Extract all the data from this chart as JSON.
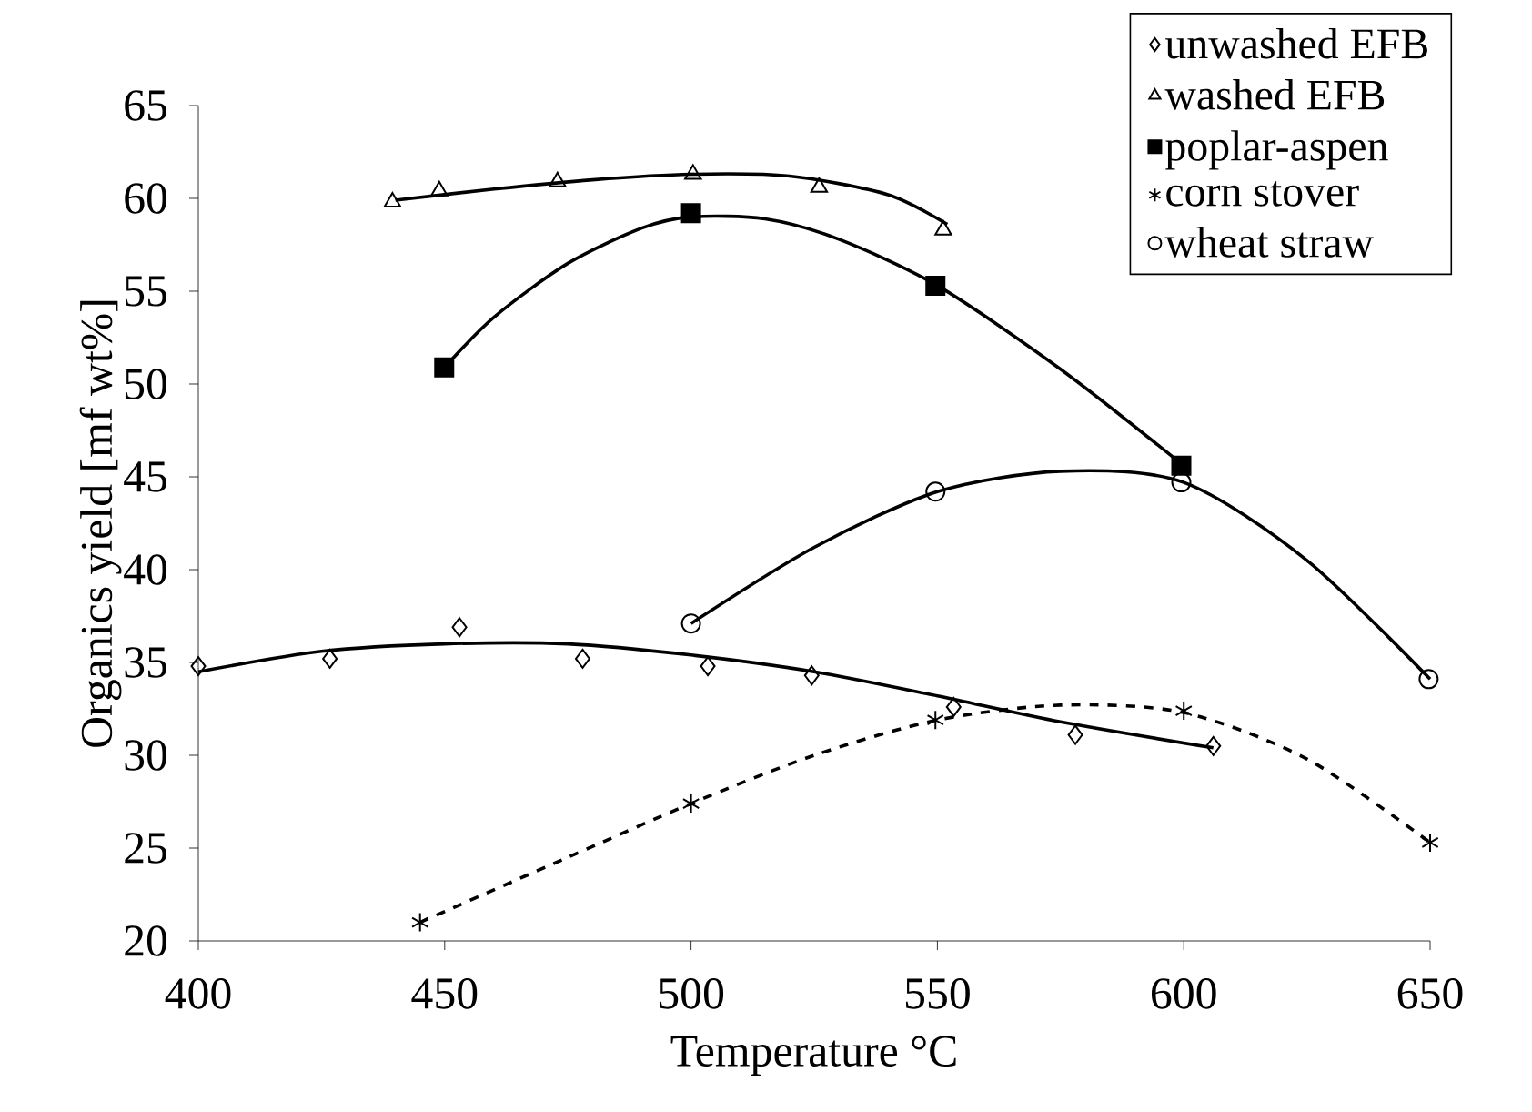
{
  "chart_data": {
    "type": "scatter",
    "xlabel": "Temperature °C",
    "ylabel": "Organics yield [mf wt%]",
    "xlim": [
      400,
      650
    ],
    "xticks": [
      400,
      450,
      500,
      550,
      600,
      650
    ],
    "ylim": [
      20,
      65
    ],
    "yticks": [
      20,
      25,
      30,
      35,
      40,
      45,
      50,
      55,
      60,
      65
    ],
    "grid": false,
    "legend": "top right",
    "series": [
      {
        "name": "unwashed EFB",
        "marker": "diamond",
        "color": "#000000",
        "x": [
          400,
          426.7,
          453,
          478,
          503.4,
          524.5,
          553.3,
          578,
          606
        ],
        "values": [
          34.8,
          35.2,
          36.9,
          35.2,
          34.8,
          34.3,
          32.6,
          31.1,
          30.5
        ]
      },
      {
        "name": "washed EFB",
        "marker": "triangle",
        "color": "#000000",
        "x": [
          439.4,
          448.9,
          472.9,
          500.4,
          526,
          551.2
        ],
        "values": [
          59.8,
          60.4,
          60.9,
          61.3,
          60.6,
          58.3
        ]
      },
      {
        "name": "poplar-aspen",
        "marker": "square",
        "color": "#000000",
        "x": [
          449.9,
          500,
          549.6,
          599.5
        ],
        "values": [
          50.9,
          59.2,
          55.3,
          45.6
        ]
      },
      {
        "name": "corn stover",
        "marker": "cross",
        "color": "#000000",
        "x": [
          445,
          500,
          549.6,
          600,
          650
        ],
        "values": [
          21.0,
          27.4,
          31.9,
          32.4,
          25.3
        ]
      },
      {
        "name": "wheat straw",
        "marker": "circle",
        "color": "#000000",
        "x": [
          500,
          549.6,
          599.5,
          649.7
        ],
        "values": [
          37.1,
          44.2,
          44.7,
          34.1
        ]
      },
      {
        "type": "line",
        "marker": "none",
        "line_style": "solid",
        "color": "#000000",
        "x": [
          400,
          425,
          450,
          475,
          500,
          525,
          550,
          575,
          606
        ],
        "values": [
          34.5,
          35.6,
          36.0,
          36.0,
          35.4,
          34.5,
          33.2,
          31.8,
          30.4
        ]
      },
      {
        "type": "line",
        "marker": "none",
        "line_style": "solid",
        "color": "#000000",
        "x": [
          440,
          460,
          480,
          500,
          520,
          540,
          552
        ],
        "values": [
          59.9,
          60.5,
          61.0,
          61.3,
          61.2,
          60.2,
          58.6
        ]
      },
      {
        "type": "line",
        "marker": "none",
        "line_style": "solid",
        "color": "#000000",
        "x": [
          450,
          460,
          475,
          490,
          500,
          515,
          530,
          550,
          575,
          600
        ],
        "values": [
          50.9,
          53.6,
          56.5,
          58.4,
          59.0,
          58.9,
          57.8,
          55.3,
          50.8,
          45.6
        ]
      },
      {
        "type": "line",
        "marker": "none",
        "line_style": "dashed",
        "color": "#000000",
        "x": [
          445,
          475,
          500,
          525,
          550,
          575,
          600,
          625,
          650
        ],
        "values": [
          21.0,
          24.5,
          27.4,
          30.0,
          31.9,
          32.7,
          32.3,
          29.8,
          25.3
        ]
      },
      {
        "type": "line",
        "marker": "none",
        "line_style": "solid",
        "color": "#000000",
        "x": [
          500,
          525,
          550,
          575,
          600,
          625,
          650
        ],
        "values": [
          37.1,
          41.2,
          44.2,
          45.3,
          44.7,
          40.5,
          34.1
        ]
      }
    ]
  }
}
